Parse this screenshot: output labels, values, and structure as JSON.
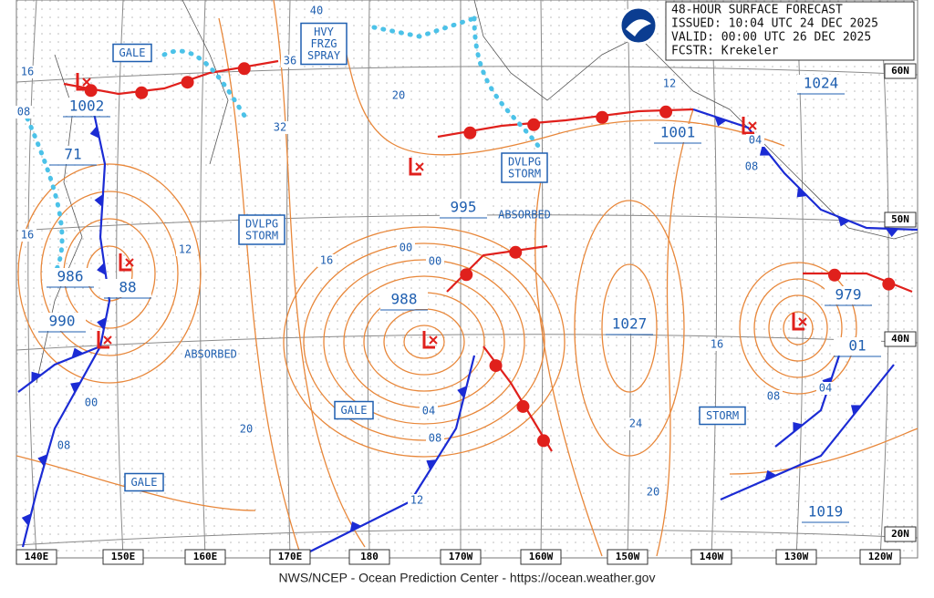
{
  "header": {
    "lines": [
      "48-HOUR SURFACE FORECAST",
      "ISSUED: 10:04 UTC 24 DEC 2025",
      "VALID:  00:00 UTC 26 DEC 2025",
      "FCSTR: Krekeler"
    ]
  },
  "longitudes": [
    "140E",
    "150E",
    "160E",
    "170E",
    "180",
    "170W",
    "160W",
    "150W",
    "140W",
    "130W",
    "120W"
  ],
  "latitudes": [
    "60N",
    "50N",
    "40N",
    "20N"
  ],
  "pressures": [
    "1002",
    "71",
    "986",
    "990",
    "88",
    "995",
    "988",
    "1027",
    "1001",
    "1024",
    "979",
    "01",
    "1019"
  ],
  "isobars": [
    "36",
    "40",
    "32",
    "20",
    "16",
    "12",
    "00",
    "00",
    "04",
    "08",
    "12",
    "20",
    "24",
    "20",
    "16",
    "08",
    "04",
    "08",
    "04",
    "12",
    "16",
    "08",
    "16",
    "00",
    "08"
  ],
  "boxes": [
    {
      "lines": [
        "GALE"
      ]
    },
    {
      "lines": [
        "HVY",
        "FRZG",
        "SPRAY"
      ]
    },
    {
      "lines": [
        "DVLPG",
        "STORM"
      ]
    },
    {
      "lines": [
        "DVLPG",
        "STORM"
      ]
    },
    {
      "lines": [
        "GALE"
      ]
    },
    {
      "lines": [
        "GALE"
      ]
    },
    {
      "lines": [
        "STORM"
      ]
    }
  ],
  "notes": [
    "ABSORBED",
    "ABSORBED"
  ],
  "footer": "NWS/NCEP - Ocean Prediction Center - https://ocean.weather.gov"
}
